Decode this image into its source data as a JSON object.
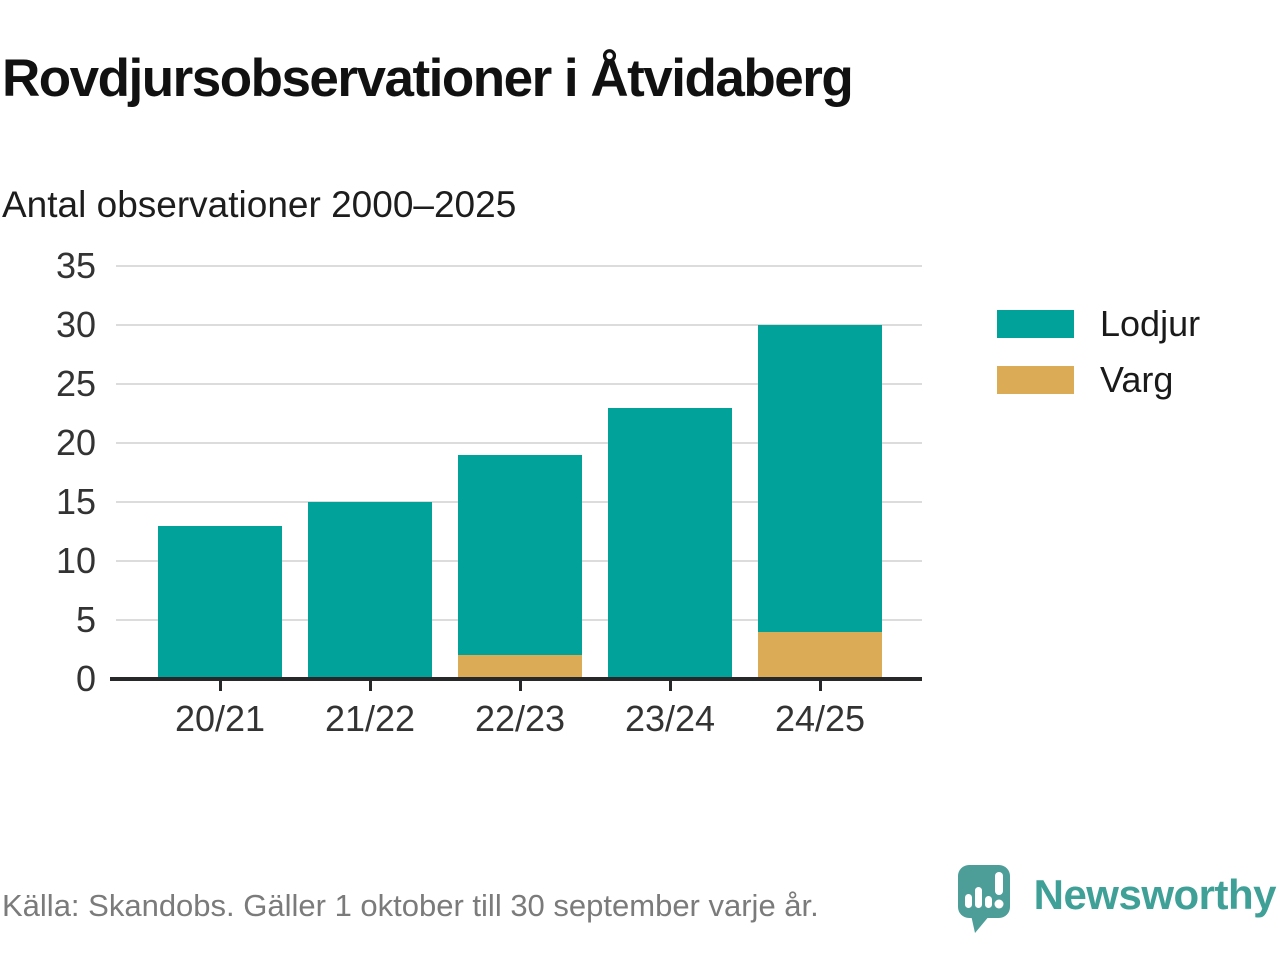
{
  "header": {
    "title": "Rovdjursobservationer i Åtvidaberg",
    "subtitle": "Antal observationer 2000–2025"
  },
  "chart_data": {
    "type": "bar",
    "stacked": true,
    "title": "Rovdjursobservationer i Åtvidaberg",
    "subtitle": "Antal observationer 2000–2025",
    "categories": [
      "20/21",
      "21/22",
      "22/23",
      "23/24",
      "24/25"
    ],
    "series": [
      {
        "name": "Lodjur",
        "color": "#00a299",
        "values": [
          13,
          15,
          17,
          23,
          26
        ]
      },
      {
        "name": "Varg",
        "color": "#dbac55",
        "values": [
          0,
          0,
          2,
          0,
          4
        ]
      }
    ],
    "stack_order_bottom_to_top": [
      "Varg",
      "Lodjur"
    ],
    "totals": [
      13,
      15,
      19,
      23,
      30
    ],
    "xlabel": "",
    "ylabel": "",
    "ylim": [
      0,
      35
    ],
    "yticks": [
      0,
      5,
      10,
      15,
      20,
      25,
      30,
      35
    ],
    "grid": "horizontal-only",
    "legend_position": "right",
    "legend_entries": [
      "Lodjur",
      "Varg"
    ]
  },
  "colors": {
    "lodjur": "#00a299",
    "varg": "#dbac55",
    "gridline": "#dcdcdc",
    "axis": "#26282a",
    "brand_teal": "#3fa097",
    "bubble_teal": "#4d9e98"
  },
  "footer": {
    "source": "Källa: Skandobs. Gäller 1 oktober till 30 september varje år.",
    "brand": "Newsworthy"
  }
}
